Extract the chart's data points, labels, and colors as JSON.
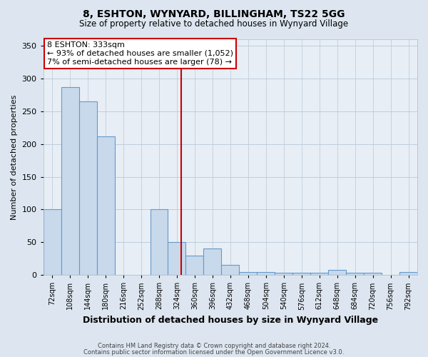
{
  "title": "8, ESHTON, WYNYARD, BILLINGHAM, TS22 5GG",
  "subtitle": "Size of property relative to detached houses in Wynyard Village",
  "xlabel": "Distribution of detached houses by size in Wynyard Village",
  "ylabel": "Number of detached properties",
  "footnote1": "Contains HM Land Registry data © Crown copyright and database right 2024.",
  "footnote2": "Contains public sector information licensed under the Open Government Licence v3.0.",
  "bin_labels": [
    "72sqm",
    "108sqm",
    "144sqm",
    "180sqm",
    "216sqm",
    "252sqm",
    "288sqm",
    "324sqm",
    "360sqm",
    "396sqm",
    "432sqm",
    "468sqm",
    "504sqm",
    "540sqm",
    "576sqm",
    "612sqm",
    "648sqm",
    "684sqm",
    "720sqm",
    "756sqm",
    "792sqm"
  ],
  "bar_values": [
    100,
    287,
    265,
    212,
    0,
    0,
    100,
    50,
    30,
    40,
    15,
    5,
    5,
    3,
    3,
    3,
    8,
    3,
    3,
    0,
    5
  ],
  "bar_color": "#c8d9eb",
  "bar_edge_color": "#6699cc",
  "property_sqm": 333,
  "property_bin_index": 8,
  "annotation_title": "8 ESHTON: 333sqm",
  "annotation_line1": "← 93% of detached houses are smaller (1,052)",
  "annotation_line2": "7% of semi-detached houses are larger (78) →",
  "annotation_box_color": "#ffffff",
  "annotation_box_edge_color": "#cc0000",
  "ylim": [
    0,
    360
  ],
  "yticks": [
    0,
    50,
    100,
    150,
    200,
    250,
    300,
    350
  ],
  "background_color": "#dde6f0",
  "plot_background_color": "#e8eef5"
}
